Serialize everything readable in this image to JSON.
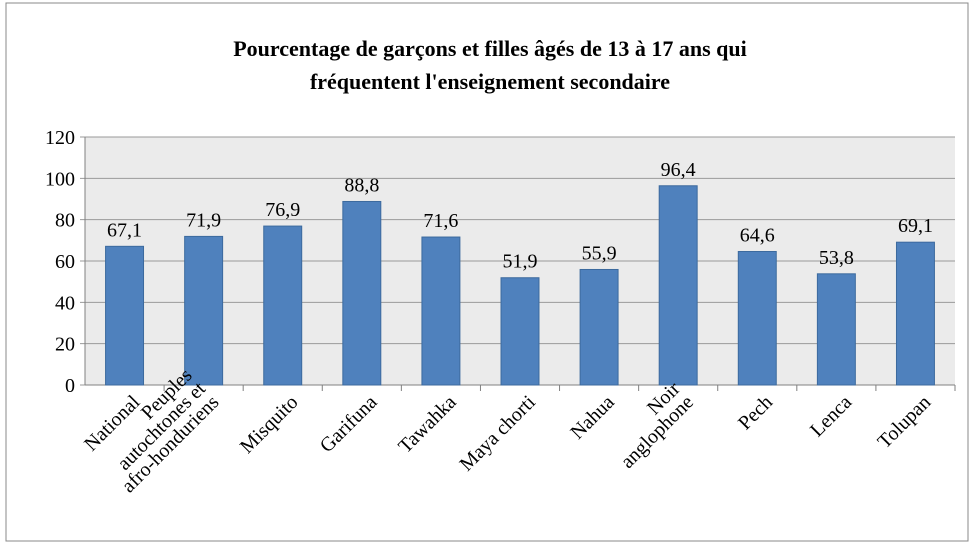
{
  "chart_data": {
    "type": "bar",
    "title": "Pourcentage de garçons et filles âgés de 13 à 17 ans qui fréquentent l'enseignement secondaire",
    "categories": [
      "National",
      "Peuples autochtones et afro-honduriens",
      "Misquito",
      "Garifuna",
      "Tawahka",
      "Maya chorti",
      "Nahua",
      "Noir anglophone",
      "Pech",
      "Lenca",
      "Tolupan"
    ],
    "values": [
      67.1,
      71.9,
      76.9,
      88.8,
      71.6,
      51.9,
      55.9,
      96.4,
      64.6,
      53.8,
      69.1
    ],
    "value_labels": [
      "67,1",
      "71,9",
      "76,9",
      "88,8",
      "71,6",
      "51,9",
      "55,9",
      "96,4",
      "64,6",
      "53,8",
      "69,1"
    ],
    "color": "#4f81bd",
    "ylim": [
      0,
      120
    ],
    "yticks": [
      0,
      20,
      40,
      60,
      80,
      100,
      120
    ],
    "grid": true
  }
}
